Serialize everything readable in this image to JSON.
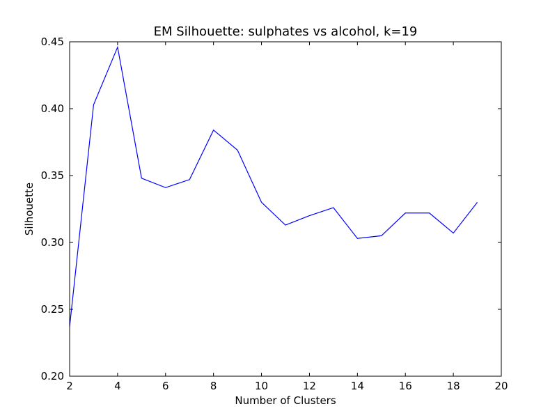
{
  "chart_data": {
    "type": "line",
    "title": "EM Silhouette: sulphates vs alcohol, k=19",
    "xlabel": "Number of Clusters",
    "ylabel": "Silhouette",
    "xlim": [
      2,
      20
    ],
    "ylim": [
      0.2,
      0.45
    ],
    "xticks": [
      "2",
      "4",
      "6",
      "8",
      "10",
      "12",
      "14",
      "16",
      "18",
      "20"
    ],
    "yticks": [
      "0.20",
      "0.25",
      "0.30",
      "0.35",
      "0.40",
      "0.45"
    ],
    "grid": false,
    "legend": "none",
    "series": [
      {
        "color": "#0000ff",
        "x": [
          2,
          3,
          4,
          5,
          6,
          7,
          8,
          9,
          10,
          11,
          12,
          13,
          14,
          15,
          16,
          17,
          18,
          19
        ],
        "values": [
          0.237,
          0.403,
          0.446,
          0.348,
          0.341,
          0.347,
          0.384,
          0.369,
          0.33,
          0.313,
          0.32,
          0.326,
          0.303,
          0.305,
          0.322,
          0.322,
          0.307,
          0.33
        ]
      }
    ]
  }
}
